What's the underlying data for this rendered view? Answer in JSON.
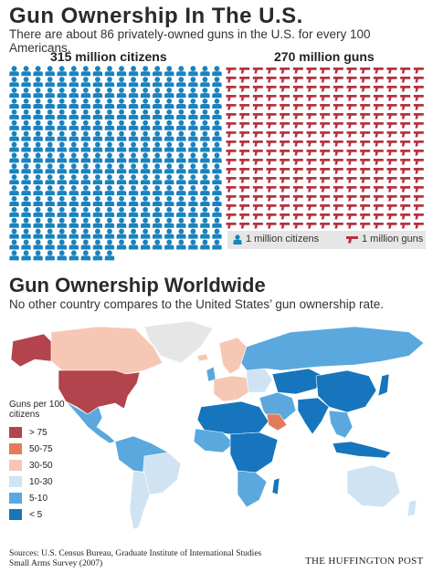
{
  "header": {
    "title": "Gun Ownership In The U.S.",
    "subtitle": "There are about 86 privately-owned guns in the U.S. for every 100 Americans."
  },
  "citizens_panel": {
    "label": "315 million citizens",
    "icon": "person-icon",
    "count": 315,
    "color": "#1a82bd"
  },
  "guns_panel": {
    "label": "270 million guns",
    "icon": "handgun-icon",
    "count": 270,
    "color": "#b7323f"
  },
  "icon_legend": {
    "citizens": "1 million citizens",
    "guns": "1 million guns"
  },
  "world_section": {
    "title": "Gun Ownership Worldwide",
    "subtitle": "No other country compares to the United States’ gun ownership rate."
  },
  "map_legend": {
    "title": "Guns per 100 citizens",
    "items": [
      {
        "label": "> 75",
        "color": "#b3434c"
      },
      {
        "label": "50-75",
        "color": "#e07c5c"
      },
      {
        "label": "30-50",
        "color": "#f6c7b4"
      },
      {
        "label": "10-30",
        "color": "#cfe3f3"
      },
      {
        "label": "5-10",
        "color": "#5aa8dd"
      },
      {
        "label": "< 5",
        "color": "#1675bd"
      }
    ]
  },
  "footer": {
    "sources": "Sources: U.S. Census Bureau, Graduate Institute of International Studies Small Arms Survey (2007)",
    "brand": "THE HUFFINGTON POST"
  }
}
